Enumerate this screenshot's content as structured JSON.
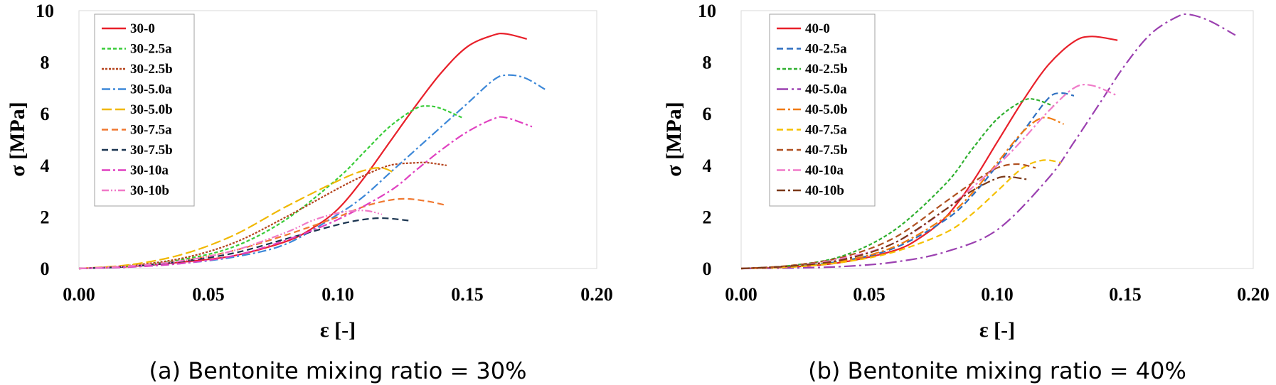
{
  "chart_data": [
    {
      "type": "line",
      "caption": "(a) Bentonite mixing ratio = 30%",
      "xlabel": "ε [-]",
      "ylabel": "σ [MPa]",
      "xlim": [
        0,
        0.2
      ],
      "ylim": [
        0,
        10
      ],
      "xticks": [
        "0.00",
        "0.05",
        "0.10",
        "0.15",
        "0.20"
      ],
      "yticks": [
        "0",
        "2",
        "4",
        "6",
        "8",
        "10"
      ],
      "legend_position": "top-left",
      "series": [
        {
          "name": "30-0",
          "color": "#e8202a",
          "dash": "solid",
          "x": [
            0,
            0.02,
            0.04,
            0.06,
            0.08,
            0.09,
            0.1,
            0.11,
            0.12,
            0.13,
            0.14,
            0.15,
            0.16,
            0.165,
            0.173
          ],
          "y": [
            0,
            0.08,
            0.25,
            0.5,
            1.05,
            1.55,
            2.3,
            3.5,
            4.9,
            6.3,
            7.6,
            8.6,
            9.05,
            9.1,
            8.9
          ]
        },
        {
          "name": "30-2.5a",
          "color": "#38cc38",
          "dash": "short",
          "x": [
            0,
            0.02,
            0.04,
            0.06,
            0.08,
            0.1,
            0.11,
            0.12,
            0.13,
            0.135,
            0.14,
            0.148
          ],
          "y": [
            0,
            0.1,
            0.35,
            0.85,
            1.9,
            3.5,
            4.5,
            5.5,
            6.2,
            6.3,
            6.2,
            5.85
          ]
        },
        {
          "name": "30-2.5b",
          "color": "#b5441e",
          "dash": "dot",
          "x": [
            0,
            0.02,
            0.04,
            0.06,
            0.08,
            0.1,
            0.11,
            0.12,
            0.13,
            0.135,
            0.142
          ],
          "y": [
            0,
            0.12,
            0.4,
            1.0,
            2.0,
            3.1,
            3.6,
            4.0,
            4.1,
            4.1,
            4.0
          ]
        },
        {
          "name": "30-5.0a",
          "color": "#3d88d8",
          "dash": "dashdot",
          "x": [
            0,
            0.02,
            0.04,
            0.06,
            0.08,
            0.1,
            0.11,
            0.12,
            0.13,
            0.14,
            0.15,
            0.16,
            0.165,
            0.172,
            0.18
          ],
          "y": [
            0,
            0.06,
            0.2,
            0.45,
            0.95,
            2.1,
            2.8,
            3.7,
            4.6,
            5.5,
            6.4,
            7.3,
            7.5,
            7.4,
            6.95
          ]
        },
        {
          "name": "30-5.0b",
          "color": "#f0b800",
          "dash": "longdash",
          "x": [
            0,
            0.02,
            0.04,
            0.06,
            0.08,
            0.1,
            0.11,
            0.117,
            0.122
          ],
          "y": [
            0,
            0.15,
            0.55,
            1.3,
            2.4,
            3.4,
            3.8,
            3.9,
            3.7
          ]
        },
        {
          "name": "30-7.5a",
          "color": "#f07830",
          "dash": "dash",
          "x": [
            0,
            0.02,
            0.04,
            0.06,
            0.08,
            0.1,
            0.11,
            0.12,
            0.127,
            0.135,
            0.142
          ],
          "y": [
            0,
            0.1,
            0.3,
            0.7,
            1.3,
            2.0,
            2.4,
            2.65,
            2.7,
            2.6,
            2.45
          ]
        },
        {
          "name": "30-7.5b",
          "color": "#1a3450",
          "dash": "dash",
          "x": [
            0,
            0.02,
            0.04,
            0.06,
            0.08,
            0.1,
            0.11,
            0.118,
            0.128
          ],
          "y": [
            0,
            0.08,
            0.28,
            0.6,
            1.15,
            1.7,
            1.9,
            1.95,
            1.85
          ]
        },
        {
          "name": "30-10a",
          "color": "#e040c0",
          "dash": "dashdot",
          "x": [
            0,
            0.02,
            0.04,
            0.06,
            0.08,
            0.1,
            0.12,
            0.13,
            0.14,
            0.15,
            0.16,
            0.165,
            0.175
          ],
          "y": [
            0,
            0.06,
            0.2,
            0.5,
            1.1,
            1.9,
            3.0,
            3.8,
            4.6,
            5.3,
            5.8,
            5.85,
            5.5
          ]
        },
        {
          "name": "30-10b",
          "color": "#f07ac8",
          "dash": "dashdotdot",
          "x": [
            0,
            0.02,
            0.04,
            0.06,
            0.08,
            0.09,
            0.1,
            0.11,
            0.117
          ],
          "y": [
            0,
            0.1,
            0.3,
            0.7,
            1.4,
            1.85,
            2.15,
            2.25,
            2.1
          ]
        }
      ]
    },
    {
      "type": "line",
      "caption": "(b) Bentonite mixing ratio = 40%",
      "xlabel": "ε [-]",
      "ylabel": "σ [MPa]",
      "xlim": [
        0,
        0.2
      ],
      "ylim": [
        0,
        10
      ],
      "xticks": [
        "0.00",
        "0.05",
        "0.10",
        "0.15",
        "0.20"
      ],
      "yticks": [
        "0",
        "2",
        "4",
        "6",
        "8",
        "10"
      ],
      "legend_position": "top-left",
      "series": [
        {
          "name": "40-0",
          "color": "#e8202a",
          "dash": "solid",
          "x": [
            0,
            0.02,
            0.04,
            0.06,
            0.07,
            0.08,
            0.09,
            0.1,
            0.11,
            0.12,
            0.13,
            0.137,
            0.147
          ],
          "y": [
            0,
            0.06,
            0.25,
            0.7,
            1.2,
            2.0,
            3.3,
            4.9,
            6.5,
            7.9,
            8.8,
            9.0,
            8.85
          ]
        },
        {
          "name": "40-2.5a",
          "color": "#2e6fc0",
          "dash": "dash",
          "x": [
            0,
            0.02,
            0.04,
            0.06,
            0.08,
            0.09,
            0.1,
            0.11,
            0.12,
            0.125,
            0.13
          ],
          "y": [
            0,
            0.08,
            0.3,
            0.8,
            1.9,
            2.8,
            4.0,
            5.3,
            6.6,
            6.8,
            6.7
          ]
        },
        {
          "name": "40-2.5b",
          "color": "#30b030",
          "dash": "short",
          "x": [
            0,
            0.02,
            0.04,
            0.06,
            0.08,
            0.09,
            0.1,
            0.11,
            0.115,
            0.122
          ],
          "y": [
            0,
            0.12,
            0.5,
            1.5,
            3.3,
            4.6,
            5.8,
            6.5,
            6.55,
            6.3
          ]
        },
        {
          "name": "40-5.0a",
          "color": "#9b40b0",
          "dash": "dashdotlong",
          "x": [
            0,
            0.02,
            0.04,
            0.06,
            0.08,
            0.1,
            0.12,
            0.13,
            0.14,
            0.15,
            0.16,
            0.17,
            0.175,
            0.183,
            0.193
          ],
          "y": [
            0,
            0.02,
            0.08,
            0.25,
            0.65,
            1.5,
            3.5,
            4.9,
            6.4,
            7.9,
            9.1,
            9.75,
            9.85,
            9.6,
            9.05
          ]
        },
        {
          "name": "40-5.0b",
          "color": "#f07a10",
          "dash": "dashdot",
          "x": [
            0,
            0.02,
            0.04,
            0.06,
            0.08,
            0.09,
            0.1,
            0.11,
            0.118,
            0.126
          ],
          "y": [
            0,
            0.08,
            0.3,
            0.85,
            2.0,
            2.9,
            4.1,
            5.3,
            5.85,
            5.6
          ]
        },
        {
          "name": "40-7.5a",
          "color": "#f5c000",
          "dash": "dash",
          "x": [
            0,
            0.02,
            0.04,
            0.06,
            0.08,
            0.09,
            0.1,
            0.11,
            0.118,
            0.125
          ],
          "y": [
            0,
            0.06,
            0.25,
            0.65,
            1.4,
            2.1,
            3.0,
            3.9,
            4.2,
            4.1
          ]
        },
        {
          "name": "40-7.5b",
          "color": "#b05020",
          "dash": "dash",
          "x": [
            0,
            0.02,
            0.04,
            0.06,
            0.08,
            0.09,
            0.1,
            0.108,
            0.115
          ],
          "y": [
            0,
            0.12,
            0.45,
            1.2,
            2.6,
            3.3,
            3.9,
            4.05,
            3.9
          ]
        },
        {
          "name": "40-10a",
          "color": "#f07ac8",
          "dash": "dashdot",
          "x": [
            0,
            0.02,
            0.04,
            0.06,
            0.08,
            0.1,
            0.11,
            0.12,
            0.13,
            0.137,
            0.147
          ],
          "y": [
            0,
            0.1,
            0.4,
            1.0,
            2.3,
            4.0,
            5.0,
            6.1,
            7.0,
            7.1,
            6.7
          ]
        },
        {
          "name": "40-10b",
          "color": "#7a3818",
          "dash": "dashdot",
          "x": [
            0,
            0.02,
            0.04,
            0.06,
            0.08,
            0.09,
            0.1,
            0.105,
            0.112
          ],
          "y": [
            0,
            0.1,
            0.35,
            1.0,
            2.3,
            3.0,
            3.5,
            3.55,
            3.45
          ]
        }
      ]
    }
  ]
}
